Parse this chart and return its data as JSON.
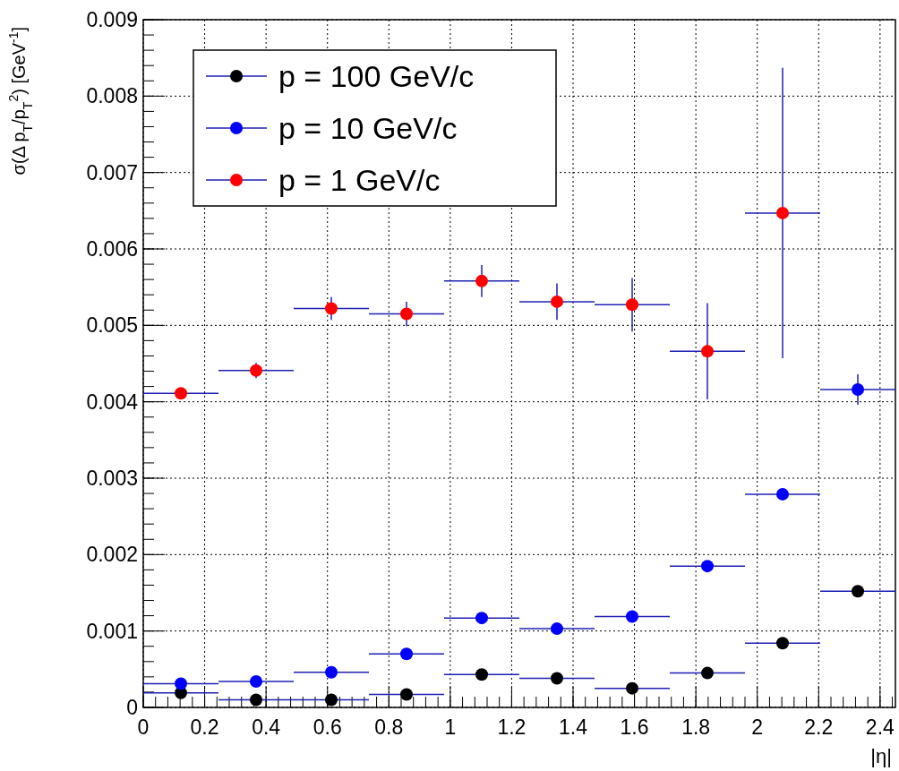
{
  "chart_data": {
    "type": "scatter",
    "xlabel": "|η|",
    "ylabel": "σ(Δ p$_{T}$/p$_{T}$$^{2}$) [GeV$^{-1}$]",
    "x": [
      0.1225,
      0.3675,
      0.6125,
      0.8575,
      1.1025,
      1.3475,
      1.5925,
      1.8375,
      2.0825,
      2.3275
    ],
    "series": [
      {
        "name": "p = 100 GeV/c",
        "color": "#000000",
        "values": [
          0.00019,
          0.0001,
          0.0001,
          0.00017,
          0.00043,
          0.00038,
          0.00025,
          0.00045,
          0.00084,
          0.00152
        ],
        "xerrors": [
          0.1225,
          0.1225,
          0.1225,
          0.1225,
          0.1225,
          0.1225,
          0.1225,
          0.1225,
          0.1225,
          0.1225
        ]
      },
      {
        "name": "p = 10 GeV/c",
        "color": "#0000ff",
        "values": [
          0.00031,
          0.00034,
          0.00046,
          0.0007,
          0.00117,
          0.00103,
          0.00119,
          0.00185,
          0.00279,
          0.00416
        ],
        "errors": [
          null,
          null,
          null,
          null,
          null,
          null,
          null,
          null,
          null,
          0.0002
        ],
        "xerrors": [
          0.1225,
          0.1225,
          0.1225,
          0.1225,
          0.1225,
          0.1225,
          0.1225,
          0.1225,
          0.1225,
          0.1225
        ]
      },
      {
        "name": "p = 1 GeV/c",
        "color": "#ff0000",
        "values": [
          0.00411,
          0.00441,
          0.00522,
          0.00515,
          0.00558,
          0.00531,
          0.00527,
          0.00466,
          0.00647,
          null
        ],
        "errors": [
          null,
          0.0001,
          0.00015,
          0.00016,
          0.00021,
          0.00024,
          0.00035,
          0.00063,
          0.0019,
          null
        ],
        "xerrors": [
          0.1225,
          0.1225,
          0.1225,
          0.1225,
          0.1225,
          0.1225,
          0.1225,
          0.1225,
          0.1225,
          null
        ]
      }
    ],
    "xlim": [
      0,
      2.45
    ],
    "xticks": [
      0,
      0.2,
      0.4,
      0.6,
      0.8,
      1,
      1.2,
      1.4,
      1.6,
      1.8,
      2,
      2.2,
      2.4
    ],
    "ylim": [
      0,
      0.009
    ],
    "yticks": [
      0,
      0.001,
      0.002,
      0.003,
      0.004,
      0.005,
      0.006,
      0.007,
      0.008,
      0.009
    ],
    "grid": true,
    "legend": "top left",
    "marker": "circle"
  }
}
